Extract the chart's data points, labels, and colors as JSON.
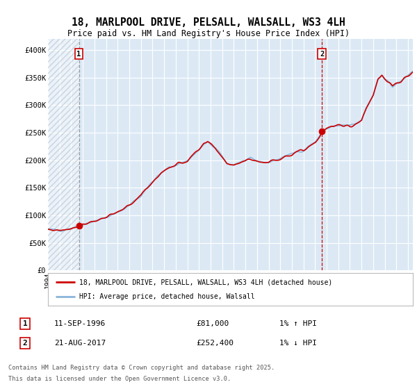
{
  "title_line1": "18, MARLPOOL DRIVE, PELSALL, WALSALL, WS3 4LH",
  "title_line2": "Price paid vs. HM Land Registry's House Price Index (HPI)",
  "background_color": "#ffffff",
  "plot_bg_color": "#dce9f5",
  "red_line_color": "#cc0000",
  "blue_line_color": "#89b4d9",
  "red_dashed_color": "#cc0000",
  "grey_dashed_color": "#999999",
  "legend1": "18, MARLPOOL DRIVE, PELSALL, WALSALL, WS3 4LH (detached house)",
  "legend2": "HPI: Average price, detached house, Walsall",
  "footer": "Contains HM Land Registry data © Crown copyright and database right 2025.\nThis data is licensed under the Open Government Licence v3.0.",
  "ylim_max": 420000,
  "yticks": [
    0,
    50000,
    100000,
    150000,
    200000,
    250000,
    300000,
    350000,
    400000
  ],
  "ytick_labels": [
    "£0",
    "£50K",
    "£100K",
    "£150K",
    "£200K",
    "£250K",
    "£300K",
    "£350K",
    "£400K"
  ],
  "xstart_year": 1994,
  "xend_year": 2025,
  "sale1_year": 1996,
  "sale1_month": 9,
  "sale1_price": 81000,
  "sale2_year": 2017,
  "sale2_month": 8,
  "sale2_price": 252400,
  "ann1_date": "11-SEP-1996",
  "ann1_price": "£81,000",
  "ann1_hpi": "1% ↑ HPI",
  "ann2_date": "21-AUG-2017",
  "ann2_price": "£252,400",
  "ann2_hpi": "1% ↓ HPI"
}
